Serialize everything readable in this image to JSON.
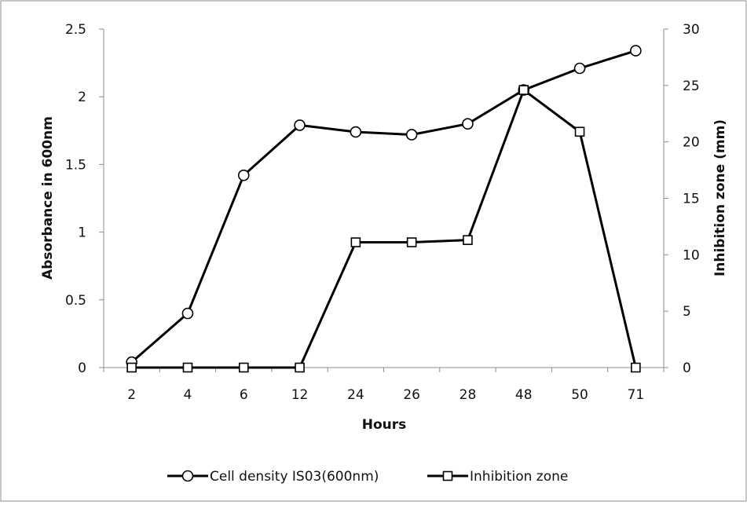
{
  "chart_data": {
    "type": "line",
    "title": "",
    "xlabel": "Hours",
    "ylabel": "Absorbance in 600nm",
    "y2label": "Inhibition zone (mm)",
    "categories": [
      "2",
      "4",
      "6",
      "12",
      "24",
      "26",
      "28",
      "48",
      "50",
      "71"
    ],
    "ylim": [
      0,
      2.5
    ],
    "yticks": [
      "0",
      "0.5",
      "1",
      "1.5",
      "2",
      "2.5"
    ],
    "y2lim": [
      0,
      30
    ],
    "y2ticks": [
      "0",
      "5",
      "10",
      "15",
      "20",
      "25",
      "30"
    ],
    "grid": false,
    "legend_position": "bottom",
    "series": [
      {
        "name": "Cell density IS03(600nm)",
        "axis": "left",
        "marker": "circle",
        "color": "#000000",
        "values": [
          0.04,
          0.4,
          1.42,
          1.79,
          1.74,
          1.72,
          1.8,
          2.05,
          2.21,
          2.34
        ]
      },
      {
        "name": "Inhibition zone",
        "axis": "right",
        "marker": "square",
        "color": "#000000",
        "values": [
          0,
          0,
          0,
          0,
          11.1,
          11.1,
          11.3,
          24.6,
          20.9,
          0
        ]
      }
    ]
  }
}
